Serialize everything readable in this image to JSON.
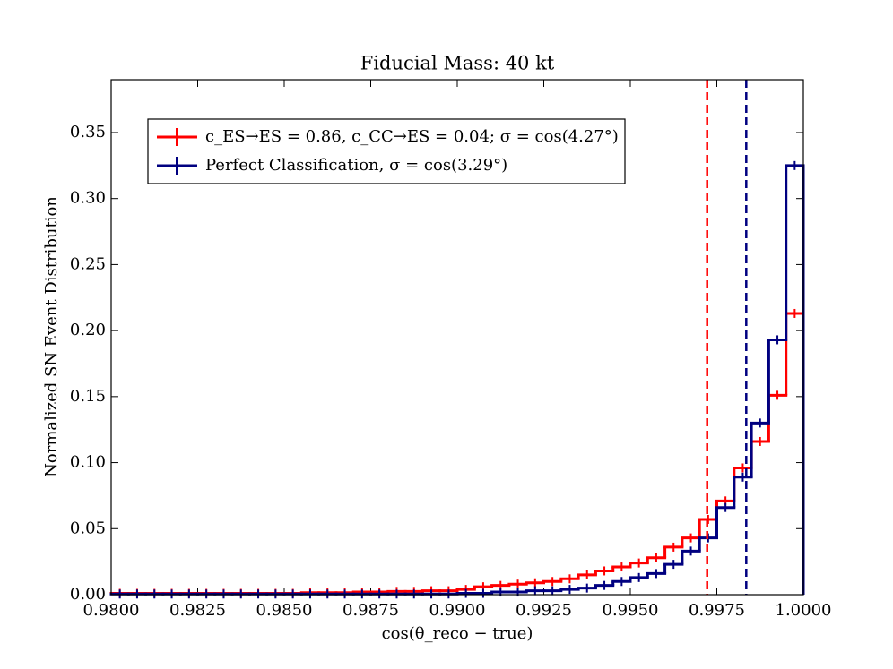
{
  "chart_data": {
    "type": "histogram",
    "title": "Fiducial Mass: 40 kt",
    "xlabel": "cos(θ_reco − true)",
    "ylabel": "Normalized SN Event Distribution",
    "bins": [
      0.98,
      0.9805,
      0.981,
      0.9815,
      0.982,
      0.9825,
      0.983,
      0.9835,
      0.984,
      0.9845,
      0.985,
      0.9855,
      0.986,
      0.9865,
      0.987,
      0.9875,
      0.988,
      0.9885,
      0.989,
      0.9895,
      0.99,
      0.9905,
      0.991,
      0.9915,
      0.992,
      0.9925,
      0.993,
      0.9935,
      0.994,
      0.9945,
      0.995,
      0.9955,
      0.996,
      0.9965,
      0.997,
      0.9975,
      0.998,
      0.9985,
      0.999,
      0.9995,
      1.0
    ],
    "series": [
      {
        "name": "c_ES→ES = 0.86, c_CC→ES = 0.04; σ = cos(4.27°)",
        "color": "#ff0000",
        "values": [
          0.001,
          0.001,
          0.001,
          0.001,
          0.001,
          0.001,
          0.001,
          0.001,
          0.001,
          0.001,
          0.001,
          0.0015,
          0.0015,
          0.0015,
          0.002,
          0.002,
          0.0025,
          0.0025,
          0.003,
          0.003,
          0.004,
          0.006,
          0.007,
          0.008,
          0.009,
          0.01,
          0.012,
          0.015,
          0.018,
          0.021,
          0.024,
          0.028,
          0.036,
          0.043,
          0.057,
          0.071,
          0.096,
          0.116,
          0.151,
          0.213
        ]
      },
      {
        "name": "Perfect Classification, σ = cos(3.29°)",
        "color": "#000080",
        "values": [
          0.0005,
          0.0005,
          0.0005,
          0.0005,
          0.0005,
          0.0005,
          0.0005,
          0.0005,
          0.0005,
          0.0005,
          0.0005,
          0.0005,
          0.0005,
          0.0005,
          0.0005,
          0.0005,
          0.0005,
          0.0005,
          0.0005,
          0.0005,
          0.001,
          0.001,
          0.002,
          0.002,
          0.003,
          0.003,
          0.004,
          0.005,
          0.007,
          0.01,
          0.013,
          0.016,
          0.023,
          0.033,
          0.043,
          0.066,
          0.089,
          0.13,
          0.193,
          0.325
        ]
      }
    ],
    "vlines": [
      {
        "x": 0.99722,
        "color": "#ff0000"
      },
      {
        "x": 0.99835,
        "color": "#000080"
      }
    ],
    "xlim": [
      0.98,
      1.0
    ],
    "ylim": [
      0,
      0.39
    ],
    "xticks": [
      {
        "value": 0.98,
        "label": "0.9800"
      },
      0.9825,
      {
        "value": 0.985,
        "label": "0.9850"
      },
      0.9875,
      {
        "value": 0.99,
        "label": "0.9900"
      },
      0.9925,
      {
        "value": 0.995,
        "label": "0.9950"
      },
      0.9975,
      {
        "value": 1.0,
        "label": "1.0000"
      }
    ],
    "yticks": [
      {
        "value": 0,
        "label": "0.00"
      },
      0.05,
      {
        "value": 0.1,
        "label": "0.10"
      },
      0.15,
      {
        "value": 0.2,
        "label": "0.20"
      },
      0.25,
      {
        "value": 0.3,
        "label": "0.30"
      },
      0.35
    ],
    "legend": "upper left"
  }
}
